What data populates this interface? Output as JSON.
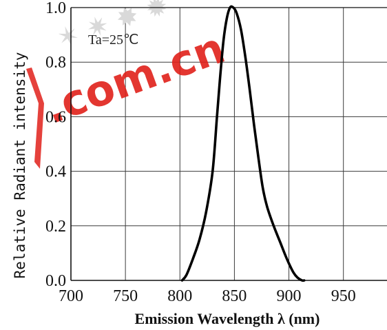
{
  "chart_data": {
    "type": "line",
    "title": "",
    "xlabel": "Emission Wavelength  λ (nm)",
    "ylabel": "Relative Radiant intensity",
    "xlim": [
      700,
      990
    ],
    "ylim": [
      0,
      1.0
    ],
    "x_ticks": [
      "700",
      "750",
      "800",
      "850",
      "900",
      "950"
    ],
    "y_ticks": [
      "0.0",
      "0.2",
      "0.4",
      "0.6",
      "0.8",
      "1.0"
    ],
    "grid": true,
    "annotation": "Ta=25℃",
    "series": [
      {
        "x": [
          802,
          806,
          812,
          818,
          824,
          830,
          834,
          837,
          840,
          843,
          846,
          849,
          852,
          856,
          860,
          864,
          868,
          872,
          876,
          880,
          886,
          892,
          898,
          904,
          908,
          912,
          914
        ],
        "y": [
          0.0,
          0.02,
          0.08,
          0.15,
          0.25,
          0.4,
          0.6,
          0.75,
          0.88,
          0.96,
          1.0,
          1.0,
          0.98,
          0.92,
          0.82,
          0.7,
          0.57,
          0.45,
          0.34,
          0.27,
          0.2,
          0.14,
          0.08,
          0.03,
          0.01,
          0.0,
          0.0
        ],
        "color": "#000000"
      }
    ]
  },
  "watermark": {
    "text": ".com.cn",
    "color": "#e0201a"
  }
}
